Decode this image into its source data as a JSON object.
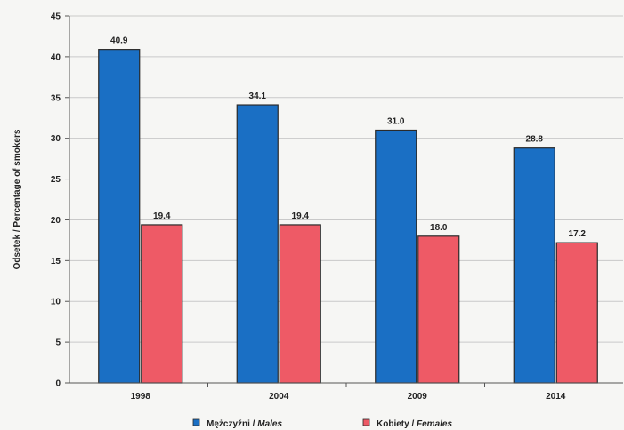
{
  "chart_data": {
    "type": "bar",
    "categories": [
      "1998",
      "2004",
      "2009",
      "2014"
    ],
    "series": [
      {
        "name": "Mężczyźni / Males",
        "name_pl": "Mężczyźni",
        "name_en": "Males",
        "values": [
          40.9,
          34.1,
          31.0,
          28.8
        ],
        "color": "#1a6fc4"
      },
      {
        "name": "Kobiety / Females",
        "name_pl": "Kobiety",
        "name_en": "Females",
        "values": [
          19.4,
          19.4,
          18.0,
          17.2
        ],
        "color": "#ee5a66"
      }
    ],
    "data_labels": [
      [
        "40.9",
        "34.1",
        "31.0",
        "28.8"
      ],
      [
        "19.4",
        "19.4",
        "18.0",
        "17.2"
      ]
    ],
    "title": "",
    "xlabel": "",
    "ylabel": "Odsetek  / Percentage of smokers",
    "ylim": [
      0,
      45
    ],
    "yticks": [
      0,
      5,
      10,
      15,
      20,
      25,
      30,
      35,
      40,
      45
    ],
    "grid": true,
    "legend": "bottom"
  }
}
